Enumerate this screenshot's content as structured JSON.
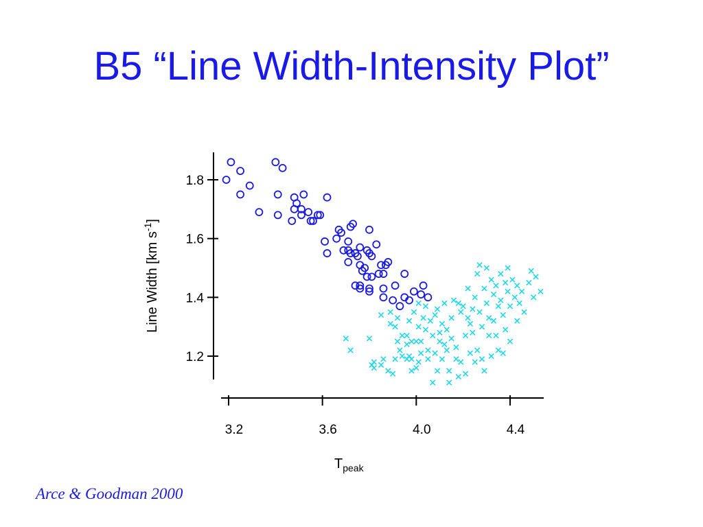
{
  "slide": {
    "title": "B5 “Line Width-Intensity Plot”",
    "citation": "Arce & Goodman 2000"
  },
  "chart_data": {
    "type": "scatter",
    "title": "",
    "xlabel": {
      "main": "T",
      "sub": "peak"
    },
    "ylabel": {
      "main": "Line Width [km s",
      "sup": "-1",
      "end": "]"
    },
    "xlim": [
      3.15,
      4.55
    ],
    "ylim": [
      1.09,
      1.91
    ],
    "xticks": [
      3.2,
      3.6,
      4.0,
      4.4
    ],
    "xtick_labels": [
      "3.2",
      "3.6",
      "4.0",
      "4.4"
    ],
    "yticks": [
      1.2,
      1.4,
      1.6,
      1.8
    ],
    "ytick_labels": [
      "1.2",
      "1.4",
      "1.6",
      "1.8"
    ],
    "grid": false,
    "colors": {
      "series_1": "#1a1ae6",
      "series_2": "#20d8e8",
      "axes": "#000000"
    },
    "series": [
      {
        "marker": "circle",
        "points": [
          [
            3.19,
            1.8
          ],
          [
            3.21,
            1.86
          ],
          [
            3.25,
            1.83
          ],
          [
            3.25,
            1.75
          ],
          [
            3.29,
            1.78
          ],
          [
            3.33,
            1.69
          ],
          [
            3.4,
            1.86
          ],
          [
            3.43,
            1.84
          ],
          [
            3.41,
            1.75
          ],
          [
            3.41,
            1.68
          ],
          [
            3.48,
            1.74
          ],
          [
            3.48,
            1.7
          ],
          [
            3.49,
            1.72
          ],
          [
            3.51,
            1.7
          ],
          [
            3.52,
            1.75
          ],
          [
            3.51,
            1.68
          ],
          [
            3.47,
            1.66
          ],
          [
            3.54,
            1.69
          ],
          [
            3.55,
            1.66
          ],
          [
            3.56,
            1.66
          ],
          [
            3.59,
            1.68
          ],
          [
            3.58,
            1.68
          ],
          [
            3.62,
            1.74
          ],
          [
            3.61,
            1.59
          ],
          [
            3.62,
            1.55
          ],
          [
            3.67,
            1.63
          ],
          [
            3.66,
            1.6
          ],
          [
            3.68,
            1.62
          ],
          [
            3.69,
            1.56
          ],
          [
            3.71,
            1.59
          ],
          [
            3.71,
            1.56
          ],
          [
            3.72,
            1.64
          ],
          [
            3.73,
            1.65
          ],
          [
            3.71,
            1.52
          ],
          [
            3.72,
            1.55
          ],
          [
            3.74,
            1.55
          ],
          [
            3.75,
            1.54
          ],
          [
            3.76,
            1.51
          ],
          [
            3.76,
            1.57
          ],
          [
            3.77,
            1.49
          ],
          [
            3.78,
            1.5
          ],
          [
            3.79,
            1.47
          ],
          [
            3.79,
            1.56
          ],
          [
            3.8,
            1.55
          ],
          [
            3.8,
            1.63
          ],
          [
            3.81,
            1.54
          ],
          [
            3.81,
            1.47
          ],
          [
            3.8,
            1.43
          ],
          [
            3.8,
            1.42
          ],
          [
            3.74,
            1.44
          ],
          [
            3.76,
            1.44
          ],
          [
            3.76,
            1.43
          ],
          [
            3.83,
            1.58
          ],
          [
            3.84,
            1.48
          ],
          [
            3.85,
            1.51
          ],
          [
            3.86,
            1.48
          ],
          [
            3.87,
            1.51
          ],
          [
            3.88,
            1.52
          ],
          [
            3.86,
            1.43
          ],
          [
            3.86,
            1.4
          ],
          [
            3.91,
            1.44
          ],
          [
            3.9,
            1.39
          ],
          [
            3.93,
            1.37
          ],
          [
            3.95,
            1.48
          ],
          [
            3.95,
            1.4
          ],
          [
            3.97,
            1.39
          ],
          [
            3.99,
            1.42
          ],
          [
            4.02,
            1.41
          ],
          [
            4.03,
            1.44
          ],
          [
            4.05,
            1.4
          ]
        ]
      },
      {
        "marker": "x",
        "points": [
          [
            3.7,
            1.26
          ],
          [
            3.72,
            1.22
          ],
          [
            3.8,
            1.26
          ],
          [
            3.81,
            1.17
          ],
          [
            3.82,
            1.16
          ],
          [
            3.82,
            1.18
          ],
          [
            3.85,
            1.17
          ],
          [
            3.86,
            1.19
          ],
          [
            3.85,
            1.34
          ],
          [
            3.89,
            1.35
          ],
          [
            3.88,
            1.15
          ],
          [
            3.9,
            1.14
          ],
          [
            3.89,
            1.31
          ],
          [
            3.91,
            1.3
          ],
          [
            3.91,
            1.19
          ],
          [
            3.92,
            1.25
          ],
          [
            3.93,
            1.22
          ],
          [
            3.92,
            1.33
          ],
          [
            3.94,
            1.27
          ],
          [
            3.94,
            1.2
          ],
          [
            3.96,
            1.19
          ],
          [
            3.96,
            1.24
          ],
          [
            3.97,
            1.32
          ],
          [
            3.97,
            1.2
          ],
          [
            3.98,
            1.19
          ],
          [
            3.98,
            1.15
          ],
          [
            3.98,
            1.25
          ],
          [
            3.99,
            1.35
          ],
          [
            4.0,
            1.25
          ],
          [
            4.01,
            1.3
          ],
          [
            4.01,
            1.18
          ],
          [
            4.01,
            1.38
          ],
          [
            4.02,
            1.25
          ],
          [
            4.02,
            1.21
          ],
          [
            4.03,
            1.33
          ],
          [
            4.04,
            1.29
          ],
          [
            4.04,
            1.37
          ],
          [
            4.05,
            1.19
          ],
          [
            4.05,
            1.22
          ],
          [
            4.06,
            1.32
          ],
          [
            4.07,
            1.27
          ],
          [
            4.07,
            1.11
          ],
          [
            4.08,
            1.34
          ],
          [
            4.08,
            1.21
          ],
          [
            4.09,
            1.36
          ],
          [
            4.09,
            1.15
          ],
          [
            4.1,
            1.28
          ],
          [
            4.1,
            1.25
          ],
          [
            4.11,
            1.19
          ],
          [
            4.11,
            1.31
          ],
          [
            4.12,
            1.24
          ],
          [
            4.12,
            1.38
          ],
          [
            4.13,
            1.29
          ],
          [
            4.13,
            1.22
          ],
          [
            4.14,
            1.15
          ],
          [
            4.14,
            1.11
          ],
          [
            4.15,
            1.33
          ],
          [
            4.15,
            1.26
          ],
          [
            4.16,
            1.39
          ],
          [
            4.17,
            1.23
          ],
          [
            4.17,
            1.19
          ],
          [
            4.18,
            1.38
          ],
          [
            4.19,
            1.18
          ],
          [
            4.19,
            1.35
          ],
          [
            4.2,
            1.37
          ],
          [
            4.21,
            1.14
          ],
          [
            4.21,
            1.27
          ],
          [
            4.22,
            1.33
          ],
          [
            4.22,
            1.43
          ],
          [
            4.23,
            1.31
          ],
          [
            4.23,
            1.21
          ],
          [
            4.24,
            1.36
          ],
          [
            4.24,
            1.28
          ],
          [
            4.25,
            1.4
          ],
          [
            4.25,
            1.18
          ],
          [
            4.26,
            1.48
          ],
          [
            4.26,
            1.22
          ],
          [
            4.27,
            1.51
          ],
          [
            4.27,
            1.35
          ],
          [
            4.28,
            1.3
          ],
          [
            4.28,
            1.19
          ],
          [
            4.29,
            1.43
          ],
          [
            4.29,
            1.15
          ],
          [
            4.3,
            1.5
          ],
          [
            4.3,
            1.38
          ],
          [
            4.31,
            1.33
          ],
          [
            4.31,
            1.27
          ],
          [
            4.32,
            1.46
          ],
          [
            4.32,
            1.2
          ],
          [
            4.33,
            1.41
          ],
          [
            4.33,
            1.32
          ],
          [
            4.34,
            1.44
          ],
          [
            4.34,
            1.27
          ],
          [
            4.35,
            1.37
          ],
          [
            4.35,
            1.22
          ],
          [
            4.36,
            1.48
          ],
          [
            4.36,
            1.39
          ],
          [
            4.37,
            1.34
          ],
          [
            4.37,
            1.21
          ],
          [
            4.38,
            1.45
          ],
          [
            4.38,
            1.29
          ],
          [
            4.39,
            1.42
          ],
          [
            4.39,
            1.5
          ],
          [
            4.4,
            1.37
          ],
          [
            4.4,
            1.25
          ],
          [
            4.41,
            1.46
          ],
          [
            4.42,
            1.4
          ],
          [
            4.43,
            1.44
          ],
          [
            4.43,
            1.32
          ],
          [
            4.44,
            1.38
          ],
          [
            4.45,
            1.42
          ],
          [
            4.46,
            1.35
          ],
          [
            4.48,
            1.45
          ],
          [
            4.49,
            1.49
          ],
          [
            4.5,
            1.4
          ],
          [
            4.51,
            1.47
          ],
          [
            4.53,
            1.42
          ],
          [
            4.18,
            1.13
          ],
          [
            4.0,
            1.16
          ],
          [
            3.96,
            1.27
          ]
        ]
      }
    ]
  }
}
